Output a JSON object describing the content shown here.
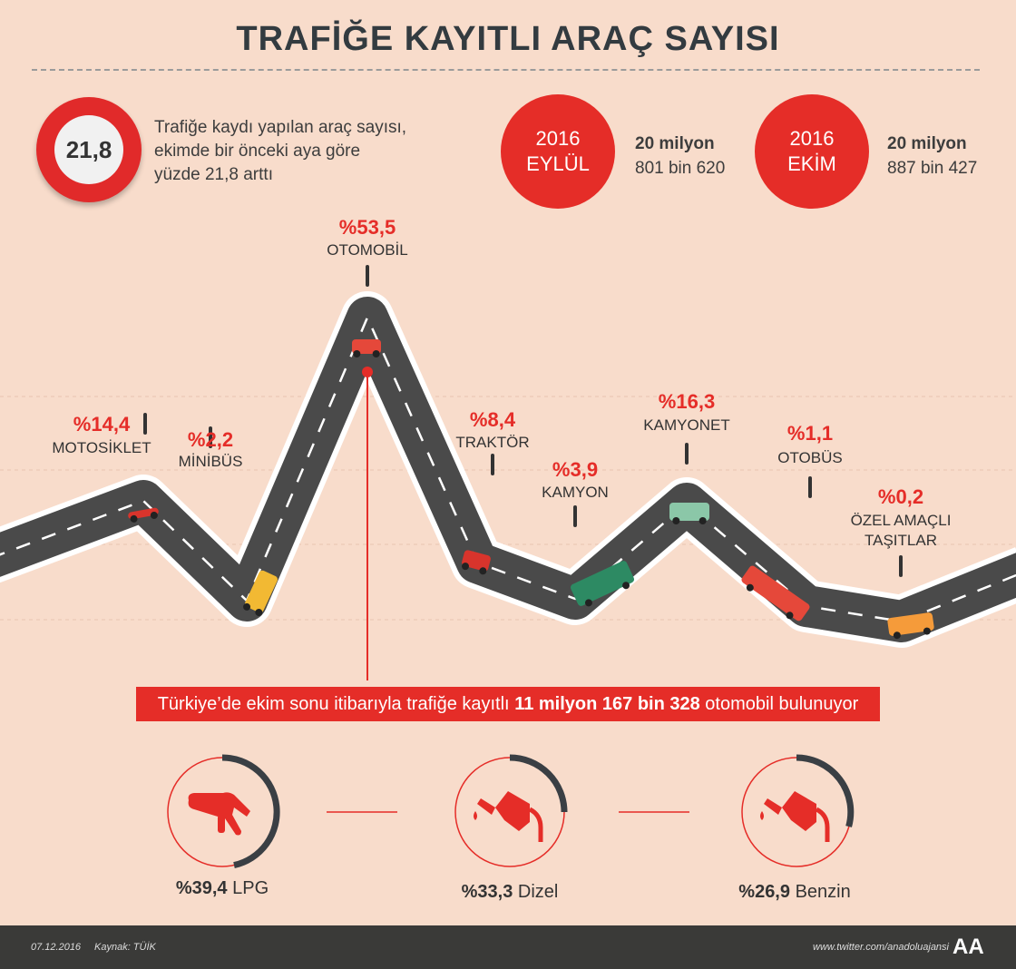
{
  "title": "TRAFİĞE KAYITLI ARAÇ SAYISI",
  "growth": {
    "value": "21,8",
    "text": "Trafiğe kaydı yapılan araç sayısı, ekimde bir önceki aya göre yüzde 21,8 arttı"
  },
  "months": [
    {
      "year": "2016",
      "name": "EYLÜL",
      "line1": "20 milyon",
      "line2": "801 bin 620"
    },
    {
      "year": "2016",
      "name": "EKİM",
      "line1": "20 milyon",
      "line2": "887 bin 427"
    }
  ],
  "chart_data": {
    "type": "line",
    "categories": [
      "MOTOSİKLET",
      "MİNİBÜS",
      "OTOMOBİL",
      "TRAKTÖR",
      "KAMYON",
      "KAMYONET",
      "OTOBÜS",
      "ÖZEL AMAÇLI TAŞITLAR"
    ],
    "labels": [
      "%14,4",
      "%2,2",
      "%53,5",
      "%8,4",
      "%3,9",
      "%16,3",
      "%1,1",
      "%0,2"
    ],
    "values": [
      14.4,
      2.2,
      53.5,
      8.4,
      3.9,
      16.3,
      1.1,
      0.2
    ]
  },
  "banner": {
    "pre": "Türkiye’de ekim sonu itibarıyla trafiğe kayıtlı ",
    "bold": "11 milyon 167 bin 328",
    "post": " otomobil bulunuyor"
  },
  "fuels": [
    {
      "pct": "%39,4",
      "name": "LPG",
      "share": 39.4
    },
    {
      "pct": "%33,3",
      "name": "Dizel",
      "share": 33.3
    },
    {
      "pct": "%26,9",
      "name": "Benzin",
      "share": 26.9
    }
  ],
  "footer": {
    "date": "07.12.2016",
    "source": "Kaynak: TÜİK",
    "url": "www.twitter.com/anadoluajansi",
    "logo": "AA"
  },
  "colors": {
    "accent": "#e52d28",
    "road": "#4a4a4a",
    "dark": "#333b40"
  }
}
